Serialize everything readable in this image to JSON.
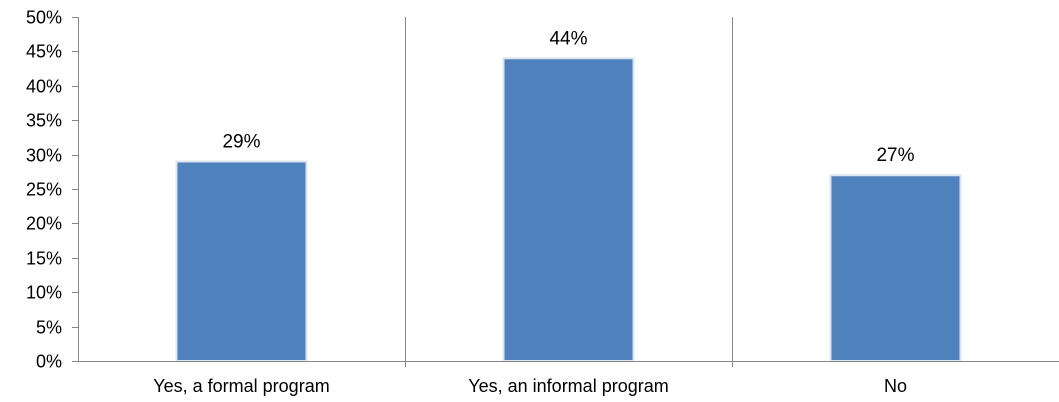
{
  "chart_data": {
    "type": "bar",
    "categories": [
      "Yes, a formal program",
      "Yes, an informal program",
      "No"
    ],
    "values": [
      29,
      44,
      27
    ],
    "value_labels": [
      "29%",
      "44%",
      "27%"
    ],
    "ylim": [
      0,
      50
    ],
    "y_ticks": [
      0,
      5,
      10,
      15,
      20,
      25,
      30,
      35,
      40,
      45,
      50
    ],
    "y_tick_labels": [
      "0%",
      "5%",
      "10%",
      "15%",
      "20%",
      "25%",
      "30%",
      "35%",
      "40%",
      "45%",
      "50%"
    ],
    "grid": false,
    "category_separators": true,
    "legend": "none",
    "title": "",
    "xlabel": "",
    "ylabel": "",
    "colors": {
      "bar": "#4F81BD",
      "bar_edge": "#DDE5F0",
      "axis": "#888888",
      "text": "#000000"
    }
  }
}
